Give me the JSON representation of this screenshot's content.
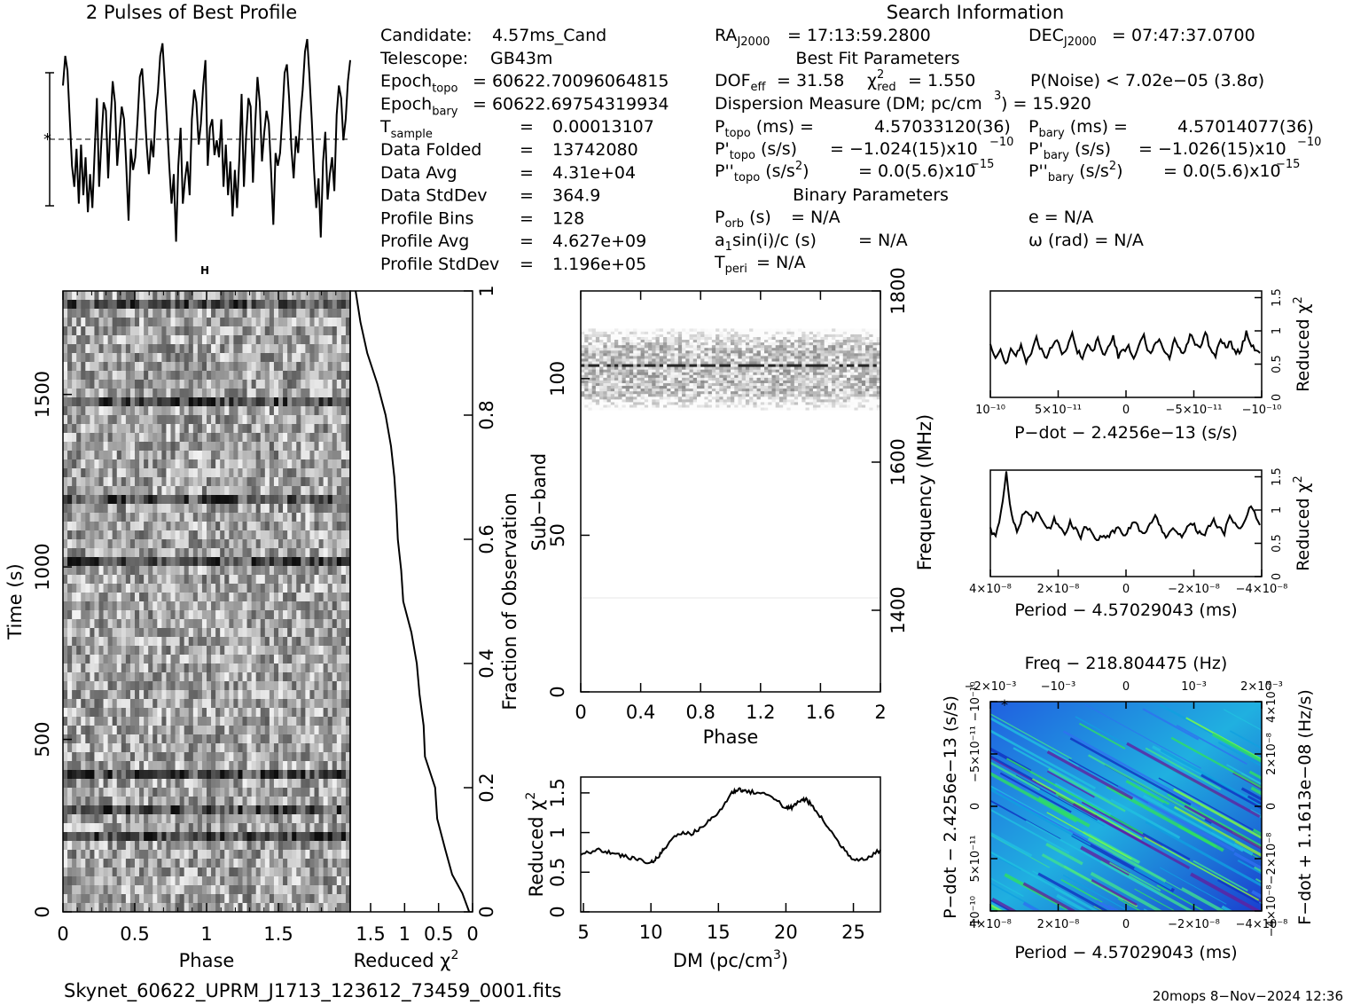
{
  "titles": {
    "profile": "2 Pulses of Best Profile",
    "search": "Search Information",
    "best_fit": "Best Fit Parameters",
    "binary": "Binary Parameters"
  },
  "info_left": [
    {
      "label": "Candidate:",
      "value": "4.57ms_Cand"
    },
    {
      "label": "Telescope:",
      "value": "GB43m"
    },
    {
      "label": "Epoch",
      "sub": "topo",
      "value": "= 60622.70096064815"
    },
    {
      "label": "Epoch",
      "sub": "bary",
      "value": "= 60622.69754319934"
    },
    {
      "label": "T",
      "sub": "sample",
      "value": "0.00013107"
    },
    {
      "label": "Data Folded",
      "value": "13742080"
    },
    {
      "label": "Data Avg",
      "value": "4.31e+04"
    },
    {
      "label": "Data StdDev",
      "value": "364.9"
    },
    {
      "label": "Profile Bins",
      "value": "128"
    },
    {
      "label": "Profile Avg",
      "value": "4.627e+09"
    },
    {
      "label": "Profile StdDev",
      "value": "1.196e+05"
    }
  ],
  "info_right": {
    "ra": "= 17:13:59.2800",
    "dec": "= 07:47:37.0700",
    "dof": "= 31.58",
    "chi2": "= 1.550",
    "pnoise": "P(Noise) < 7.02e−05   (3.8σ)",
    "dm": "Dispersion Measure (DM; pc/cm",
    "dm_val": ") = 15.920",
    "ptopo": "4.57033120(36)",
    "pbary": "4.57014077(36)",
    "pdtopo": "= −1.024(15)x10",
    "pdbary": "= −1.026(15)x10",
    "pdexp": "−10",
    "pddtopo": "= 0.0(5.6)x10",
    "pddbary": "= 0.0(5.6)x10",
    "pddexp": "−15",
    "porb": "= N/A",
    "asini": "= N/A",
    "tperi": "= N/A",
    "e": "e = N/A",
    "omega": "ω (rad) = N/A"
  },
  "footer": {
    "filename": "Skynet_60622_UPRM_J1713_123612_73459_0001.fits",
    "stamp": "20mops   8−Nov−2024 12:36"
  },
  "chart_data": [
    {
      "type": "line",
      "name": "profile",
      "title": "2 Pulses of Best Profile",
      "x_range": [
        0,
        2
      ],
      "bins": 128,
      "values": [
        0.78,
        0.92,
        0.85,
        0.62,
        0.4,
        0.3,
        0.48,
        0.22,
        0.5,
        0.26,
        0.44,
        0.18,
        0.36,
        0.2,
        0.46,
        0.72,
        0.3,
        0.52,
        0.7,
        0.66,
        0.34,
        0.6,
        0.8,
        0.7,
        0.4,
        0.55,
        0.68,
        0.62,
        0.4,
        0.14,
        0.48,
        0.38,
        0.44,
        0.62,
        0.82,
        0.86,
        0.7,
        0.5,
        0.36,
        0.52,
        0.44,
        0.66,
        0.75,
        0.92,
        0.98,
        0.8,
        0.6,
        0.4,
        0.22,
        0.36,
        0.04,
        0.4,
        0.58,
        0.22,
        0.34,
        0.42,
        0.26,
        0.62,
        0.76,
        0.7,
        0.5,
        0.6,
        0.78,
        0.9,
        0.4,
        0.58,
        0.62,
        0.45,
        0.52,
        0.44,
        0.62,
        0.3,
        0.5,
        0.26,
        0.42,
        0.16,
        0.38,
        0.2,
        0.44,
        0.74,
        0.3,
        0.54,
        0.72,
        0.68,
        0.32,
        0.6,
        0.82,
        0.7,
        0.42,
        0.56,
        0.66,
        0.6,
        0.38,
        0.12,
        0.46,
        0.4,
        0.46,
        0.64,
        0.84,
        0.88,
        0.72,
        0.48,
        0.34,
        0.54,
        0.46,
        0.64,
        0.76,
        0.94,
        1.0,
        0.82,
        0.62,
        0.38,
        0.2,
        0.34,
        0.06,
        0.42,
        0.56,
        0.24,
        0.36,
        0.44,
        0.28,
        0.64,
        0.78,
        0.72,
        0.52,
        0.62,
        0.8,
        0.9
      ]
    },
    {
      "type": "heatmap",
      "name": "time-phase",
      "xlabel": "Phase",
      "ylabel": "Time (s)",
      "x_ticks": [
        "0",
        "0.5",
        "1",
        "1.5"
      ],
      "y_ticks": [
        "0",
        "500",
        "1000",
        "1500"
      ],
      "xlim": [
        0,
        2
      ],
      "ylim": [
        0,
        1800
      ]
    },
    {
      "type": "line",
      "name": "time-chi2",
      "xlabel": "Reduced χ²",
      "x_ticks": [
        "1.5",
        "1",
        "0.5",
        "0"
      ],
      "y_ticks": [
        "0",
        "0.2",
        "0.4",
        "0.6",
        "0.8",
        "1"
      ],
      "ylabel_right": "Fraction of Observation",
      "fraction": [
        0.0,
        0.03,
        0.06,
        0.1,
        0.15,
        0.2,
        0.25,
        0.3,
        0.35,
        0.4,
        0.45,
        0.5,
        0.55,
        0.6,
        0.65,
        0.7,
        0.75,
        0.8,
        0.85,
        0.9,
        0.95,
        1.0
      ],
      "chi2": [
        0.05,
        0.15,
        0.3,
        0.4,
        0.52,
        0.55,
        0.7,
        0.72,
        0.78,
        0.82,
        0.9,
        1.02,
        1.05,
        1.1,
        1.12,
        1.15,
        1.2,
        1.28,
        1.4,
        1.55,
        1.65,
        1.72
      ]
    },
    {
      "type": "heatmap",
      "name": "subband-phase",
      "xlabel": "Phase",
      "ylabel": "Sub−band",
      "ylabel_right": "Frequency (MHz)",
      "x_ticks": [
        "0",
        "0.4",
        "0.8",
        "1.2",
        "1.6",
        "2"
      ],
      "y_ticks": [
        "0",
        "50",
        "100"
      ],
      "y2_ticks": [
        "1400",
        "1600",
        "1800"
      ],
      "xlim": [
        0,
        2
      ],
      "ylim": [
        0,
        128
      ],
      "signal_band": [
        90,
        116
      ]
    },
    {
      "type": "line",
      "name": "dm-chi2",
      "xlabel": "DM (pc/cm³)",
      "ylabel": "Reduced χ²",
      "x_ticks": [
        "5",
        "10",
        "15",
        "20",
        "25"
      ],
      "y_ticks": [
        "0",
        "0.5",
        "1",
        "1.5"
      ],
      "xlim": [
        4.8,
        27
      ],
      "ylim": [
        0,
        1.7
      ],
      "x": [
        4.8,
        6,
        7,
        8,
        9,
        10,
        10.5,
        11,
        12,
        13,
        14,
        15,
        16,
        16.5,
        17,
        18,
        19,
        20,
        20.5,
        21,
        21.5,
        22,
        23,
        24,
        25,
        26,
        27
      ],
      "y": [
        0.72,
        0.78,
        0.75,
        0.7,
        0.66,
        0.62,
        0.68,
        0.8,
        1.0,
        0.98,
        1.1,
        1.25,
        1.5,
        1.55,
        1.52,
        1.5,
        1.46,
        1.3,
        1.32,
        1.4,
        1.42,
        1.32,
        1.1,
        0.85,
        0.66,
        0.68,
        0.78
      ]
    },
    {
      "type": "line",
      "name": "pdot-chi2",
      "xlabel": "P−dot − 2.4256e−13 (s/s)",
      "ylabel_right": "Reduced χ²",
      "x_ticks": [
        "10⁻¹⁰",
        "5×10⁻¹¹",
        "0",
        "−5×10⁻¹¹",
        "−10⁻¹⁰"
      ],
      "y_ticks": [
        "0",
        "0.5",
        "1",
        "1.5"
      ],
      "ylim": [
        0,
        1.6
      ],
      "values": [
        0.78,
        0.6,
        0.7,
        0.5,
        0.72,
        0.62,
        0.8,
        0.55,
        0.68,
        0.9,
        0.7,
        0.6,
        0.76,
        0.84,
        0.66,
        0.72,
        0.94,
        0.7,
        0.6,
        0.82,
        0.7,
        0.88,
        0.64,
        0.74,
        0.9,
        0.62,
        0.7,
        0.76,
        0.58,
        0.8,
        0.92,
        0.66,
        0.78,
        0.84,
        0.68,
        0.6,
        0.86,
        0.72,
        0.66,
        0.94,
        0.8,
        0.74,
        1.0,
        0.7,
        0.62,
        0.88,
        0.76,
        0.82,
        0.66,
        0.72,
        0.98,
        0.8,
        0.7,
        0.6
      ]
    },
    {
      "type": "line",
      "name": "period-chi2",
      "xlabel": "Period − 4.57029043 (ms)",
      "ylabel_right": "Reduced χ²",
      "x_ticks": [
        "4×10⁻⁸",
        "2×10⁻⁸",
        "0",
        "−2×10⁻⁸",
        "−4×10⁻⁸"
      ],
      "y_ticks": [
        "0",
        "0.5",
        "1",
        "1.5"
      ],
      "ylim": [
        0,
        1.6
      ],
      "values": [
        0.7,
        0.58,
        0.98,
        1.55,
        0.92,
        0.68,
        0.9,
        1.0,
        0.86,
        0.96,
        0.8,
        0.7,
        0.88,
        0.74,
        0.66,
        0.82,
        0.72,
        0.6,
        0.76,
        0.68,
        0.54,
        0.62,
        0.58,
        0.66,
        0.74,
        0.6,
        0.7,
        0.82,
        0.72,
        0.64,
        0.78,
        0.9,
        0.74,
        0.62,
        0.7,
        0.66,
        0.58,
        0.74,
        0.8,
        0.68,
        0.6,
        0.76,
        0.84,
        0.72,
        0.66,
        0.9,
        0.8,
        0.7,
        0.88,
        1.05,
        0.9,
        0.76
      ]
    },
    {
      "type": "heatmap",
      "name": "period-pdot",
      "title": "Freq − 218.804475 (Hz)",
      "xlabel": "Period − 4.57029043 (ms)",
      "ylabel": "P−dot − 2.4256e−13 (s/s)",
      "ylabel_right": "F−dot + 1.1613e−08 (Hz/s)",
      "x_ticks": [
        "4×10⁻⁸",
        "2×10⁻⁸",
        "0",
        "−2×10⁻⁸",
        "−4×10⁻⁸"
      ],
      "x2_ticks": [
        "−2×10⁻³",
        "−10⁻³",
        "0",
        "10⁻³",
        "2×10⁻³"
      ],
      "y_ticks": [
        "10⁻¹⁰",
        "5×10⁻¹¹",
        "0",
        "−5×10⁻¹¹",
        "−10⁻¹⁰"
      ],
      "y2_ticks": [
        "−4×10⁻⁸",
        "−2×10⁻⁸",
        "0",
        "2×10⁻⁸",
        "4×10⁻⁸"
      ]
    }
  ],
  "colors": {
    "ink": "#000000",
    "grid_bg": "#ffffff"
  }
}
